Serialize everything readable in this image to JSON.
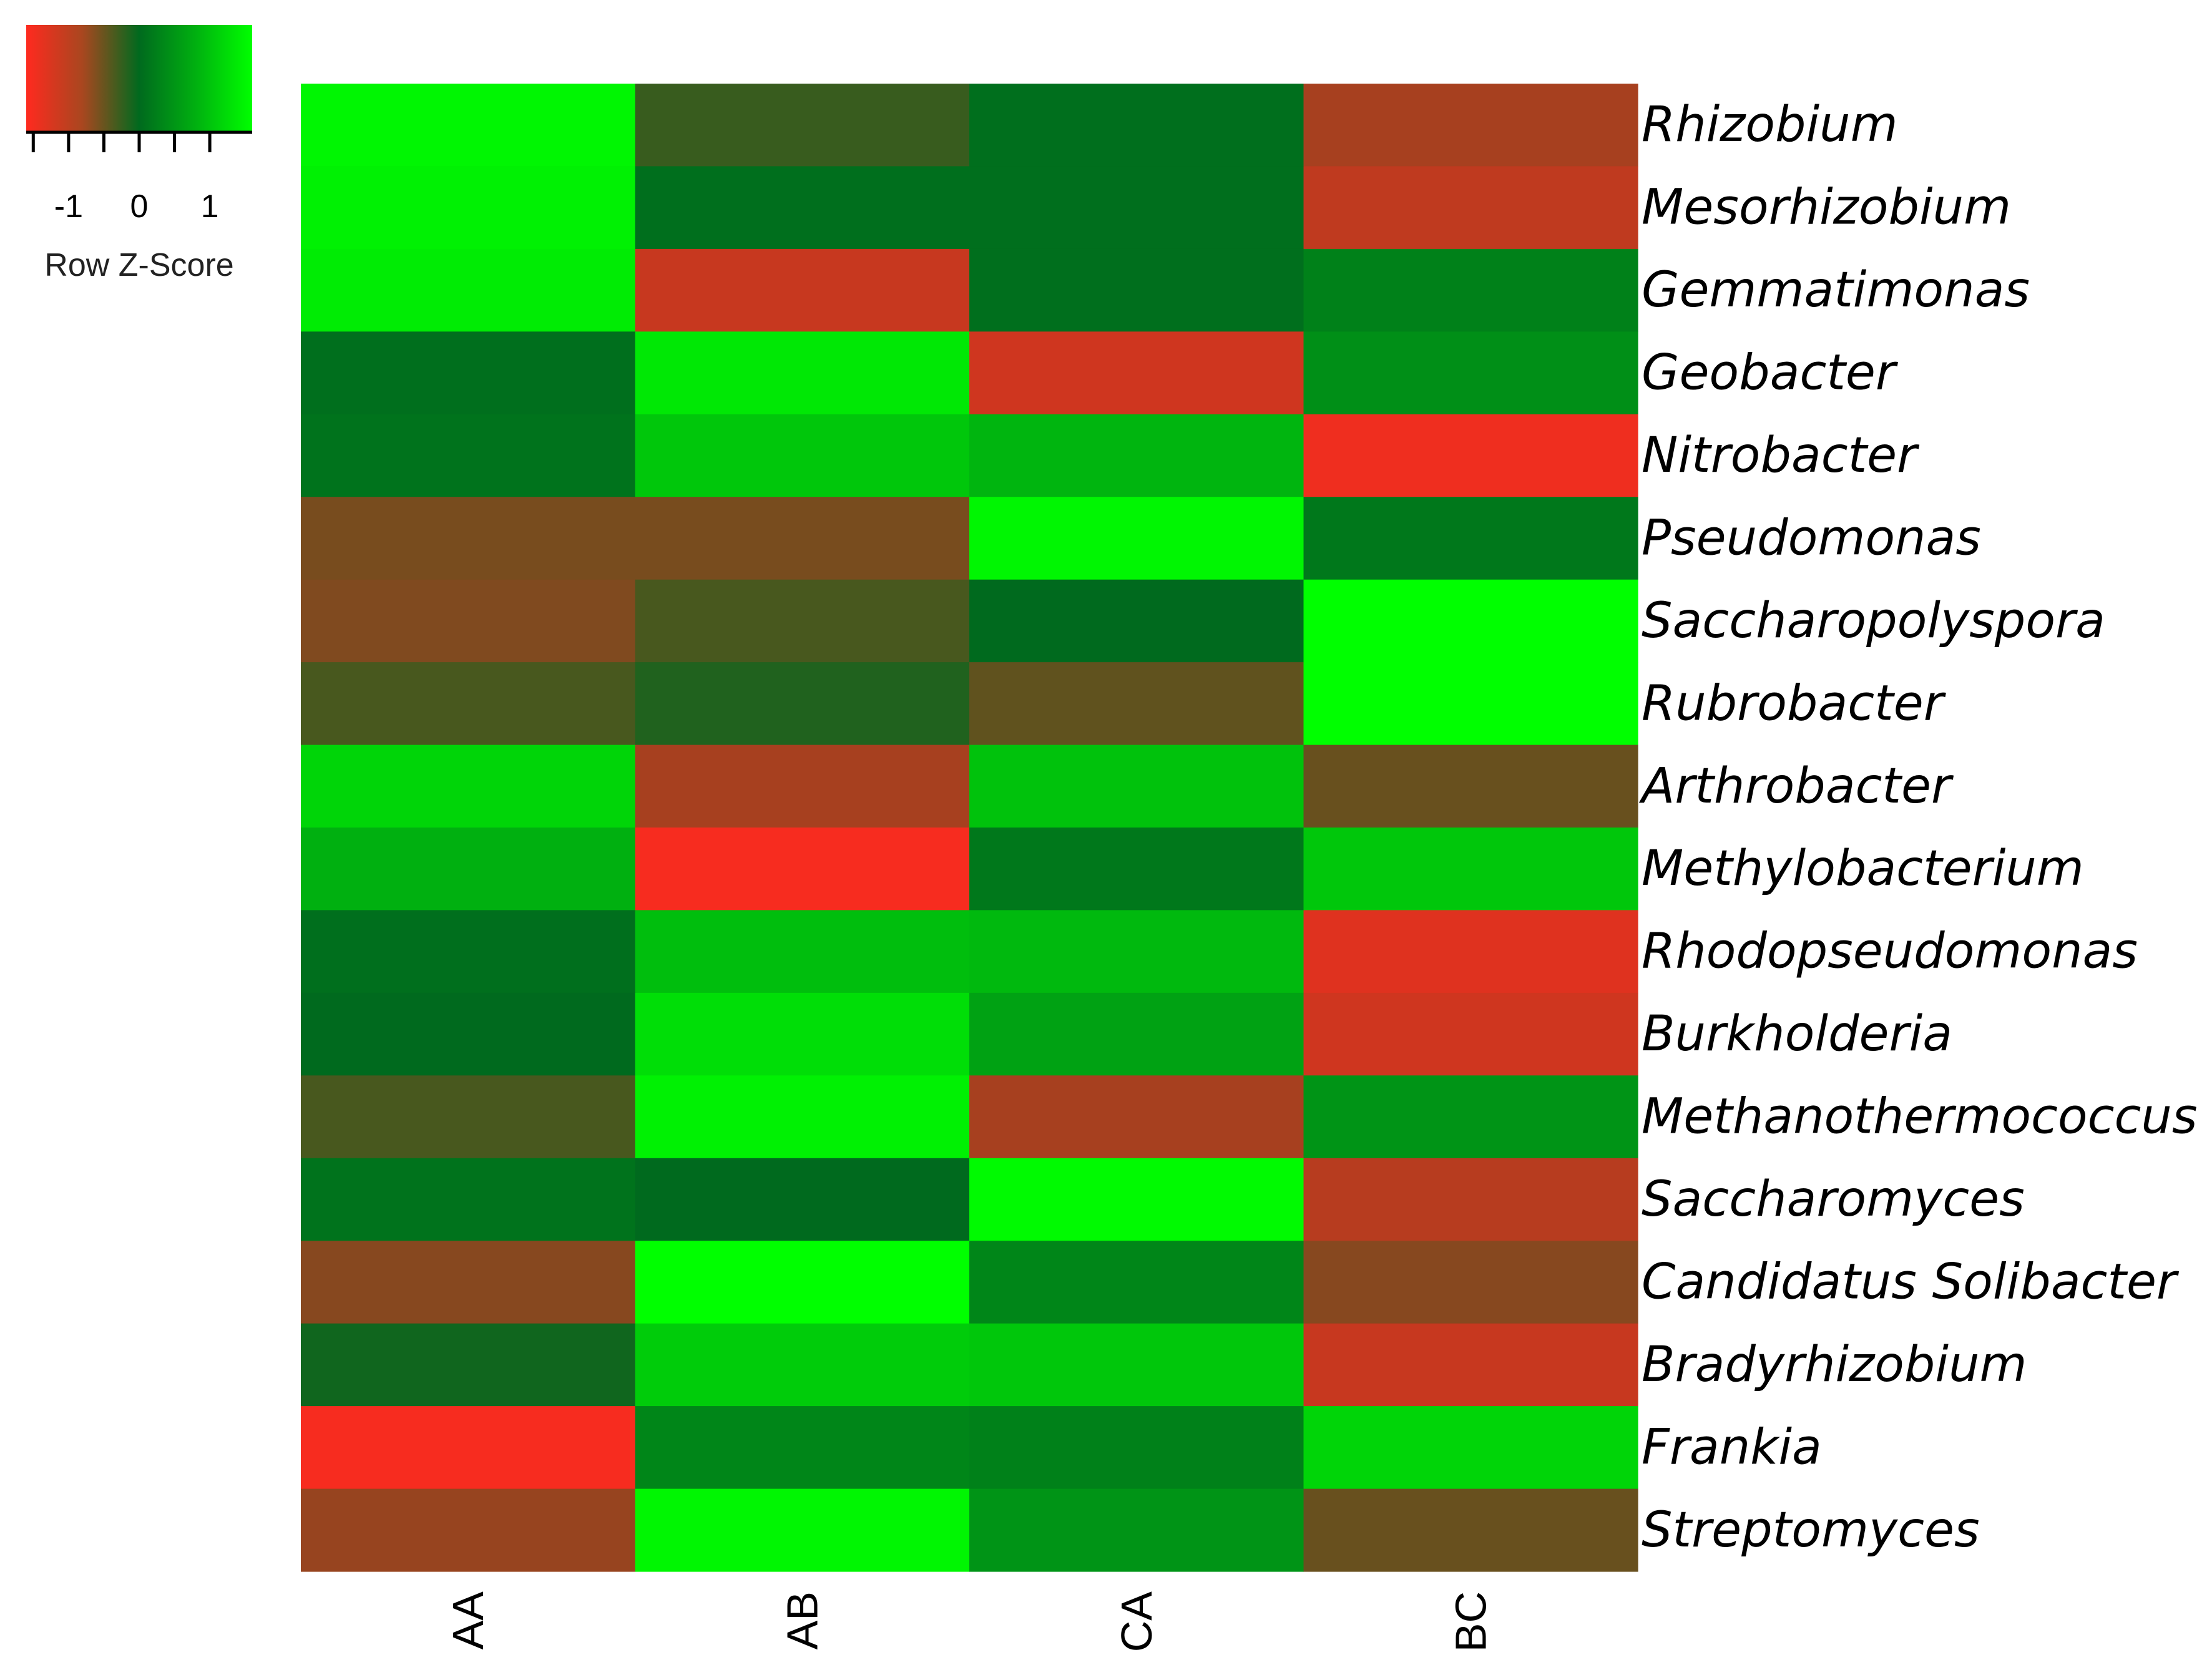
{
  "chart_data": {
    "type": "heatmap",
    "columns": [
      "AA",
      "AB",
      "CA",
      "BC"
    ],
    "rows": [
      "Rhizobium",
      "Mesorhizobium",
      "Gemmatimonas",
      "Geobacter",
      "Nitrobacter",
      "Pseudomonas",
      "Saccharopolyspora",
      "Rubrobacter",
      "Arthrobacter",
      "Methylobacterium",
      "Rhodopseudomonas",
      "Burkholderia",
      "Methanothermococcus",
      "Saccharomyces",
      "Candidatus Solibacter",
      "Bradyrhizobium",
      "Frankia",
      "Streptomyces"
    ],
    "values": [
      [
        1.5,
        -0.35,
        0.05,
        -1.05
      ],
      [
        1.45,
        0.05,
        0.05,
        -1.2
      ],
      [
        1.4,
        -1.25,
        0.05,
        0.25
      ],
      [
        0.05,
        1.35,
        -1.3,
        0.4
      ],
      [
        0.1,
        1.0,
        0.8,
        -1.5
      ],
      [
        -0.75,
        -0.75,
        1.5,
        0.15
      ],
      [
        -0.8,
        -0.45,
        0.0,
        1.6
      ],
      [
        -0.45,
        -0.2,
        -0.6,
        1.6
      ],
      [
        1.15,
        -1.05,
        0.95,
        -0.65
      ],
      [
        0.75,
        -1.55,
        0.15,
        1.0
      ],
      [
        0.05,
        0.9,
        0.85,
        -1.4
      ],
      [
        0.0,
        1.25,
        0.6,
        -1.3
      ],
      [
        -0.45,
        1.45,
        -1.05,
        0.45
      ],
      [
        0.1,
        0.0,
        1.55,
        -1.15
      ],
      [
        -0.85,
        1.6,
        0.3,
        -0.85
      ],
      [
        -0.1,
        1.05,
        1.0,
        -1.25
      ],
      [
        -1.55,
        0.3,
        0.25,
        1.15
      ],
      [
        -0.95,
        1.5,
        0.45,
        -0.65
      ]
    ],
    "color_scale": {
      "low": "#ff2a1f",
      "mid": "#006a1e",
      "high": "#00ff00",
      "min": -1.6,
      "max": 1.6
    },
    "legend": {
      "tick_labels": [
        "-1",
        "0",
        "1"
      ],
      "tick_values": [
        -1,
        0,
        1
      ],
      "title": "Row Z-Score"
    }
  }
}
